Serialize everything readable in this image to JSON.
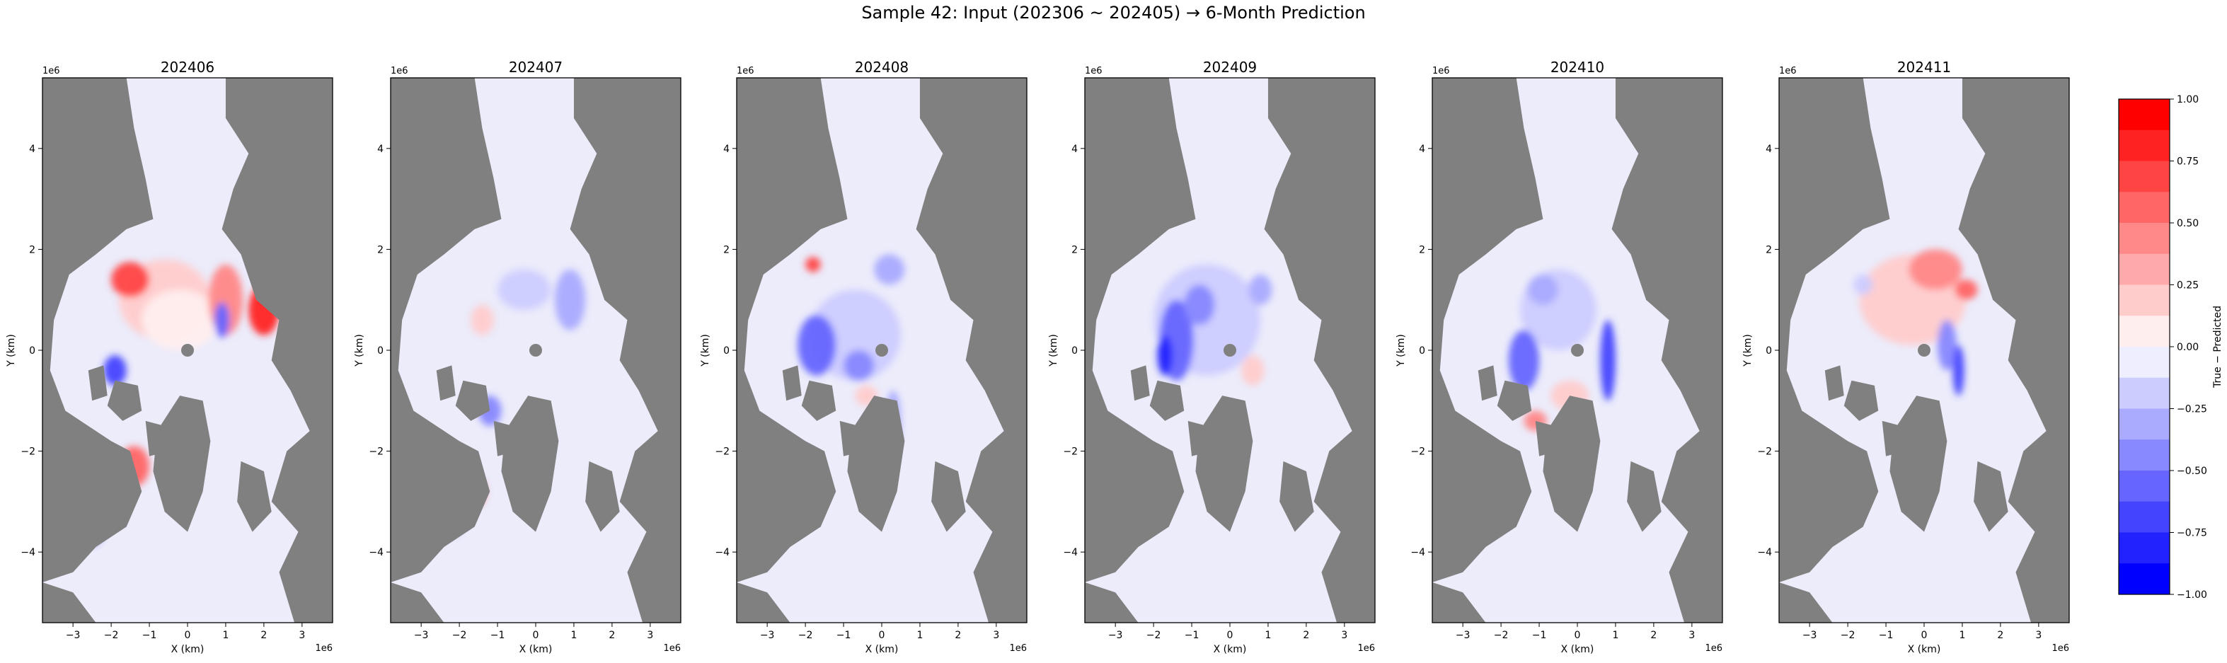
{
  "figure": {
    "suptitle": "Sample 42: Input (202306 ~ 202405) → 6-Month Prediction"
  },
  "chart_data": {
    "type": "heatmap",
    "panels": [
      {
        "title": "202406"
      },
      {
        "title": "202407"
      },
      {
        "title": "202408"
      },
      {
        "title": "202409"
      },
      {
        "title": "202410"
      },
      {
        "title": "202411"
      }
    ],
    "xlabel": "X (km)",
    "ylabel": "Y (km)",
    "x_offset_text": "1e6",
    "y_offset_text": "1e6",
    "xlim": [
      -3.8,
      3.8
    ],
    "ylim": [
      -5.4,
      5.4
    ],
    "x_ticks": [
      -3,
      -2,
      -1,
      0,
      1,
      2,
      3
    ],
    "x_tick_labels": [
      "−3",
      "−2",
      "−1",
      "0",
      "1",
      "2",
      "3"
    ],
    "y_ticks": [
      -4,
      -2,
      0,
      2,
      4
    ],
    "y_tick_labels": [
      "−4",
      "−2",
      "0",
      "2",
      "4"
    ],
    "land_color": "#808080",
    "background_color": "#ececfb",
    "colorbar": {
      "label": "True − Predicted",
      "range": [
        -1.0,
        1.0
      ],
      "levels": 16,
      "ticks": [
        1.0,
        0.75,
        0.5,
        0.25,
        0.0,
        -0.25,
        -0.5,
        -0.75,
        -1.0
      ],
      "tick_labels": [
        "1.00",
        "0.75",
        "0.50",
        "0.25",
        "0.00",
        "−0.25",
        "−0.50",
        "−0.75",
        "−1.00"
      ],
      "colors": [
        "#ff0000",
        "#ff2222",
        "#ff4444",
        "#ff6666",
        "#ff8888",
        "#ffaaaa",
        "#ffcccc",
        "#ffeeee",
        "#eeeeff",
        "#ccccff",
        "#aaaaff",
        "#8888ff",
        "#6666ff",
        "#4444ff",
        "#2222ff",
        "#0000ff"
      ]
    }
  }
}
